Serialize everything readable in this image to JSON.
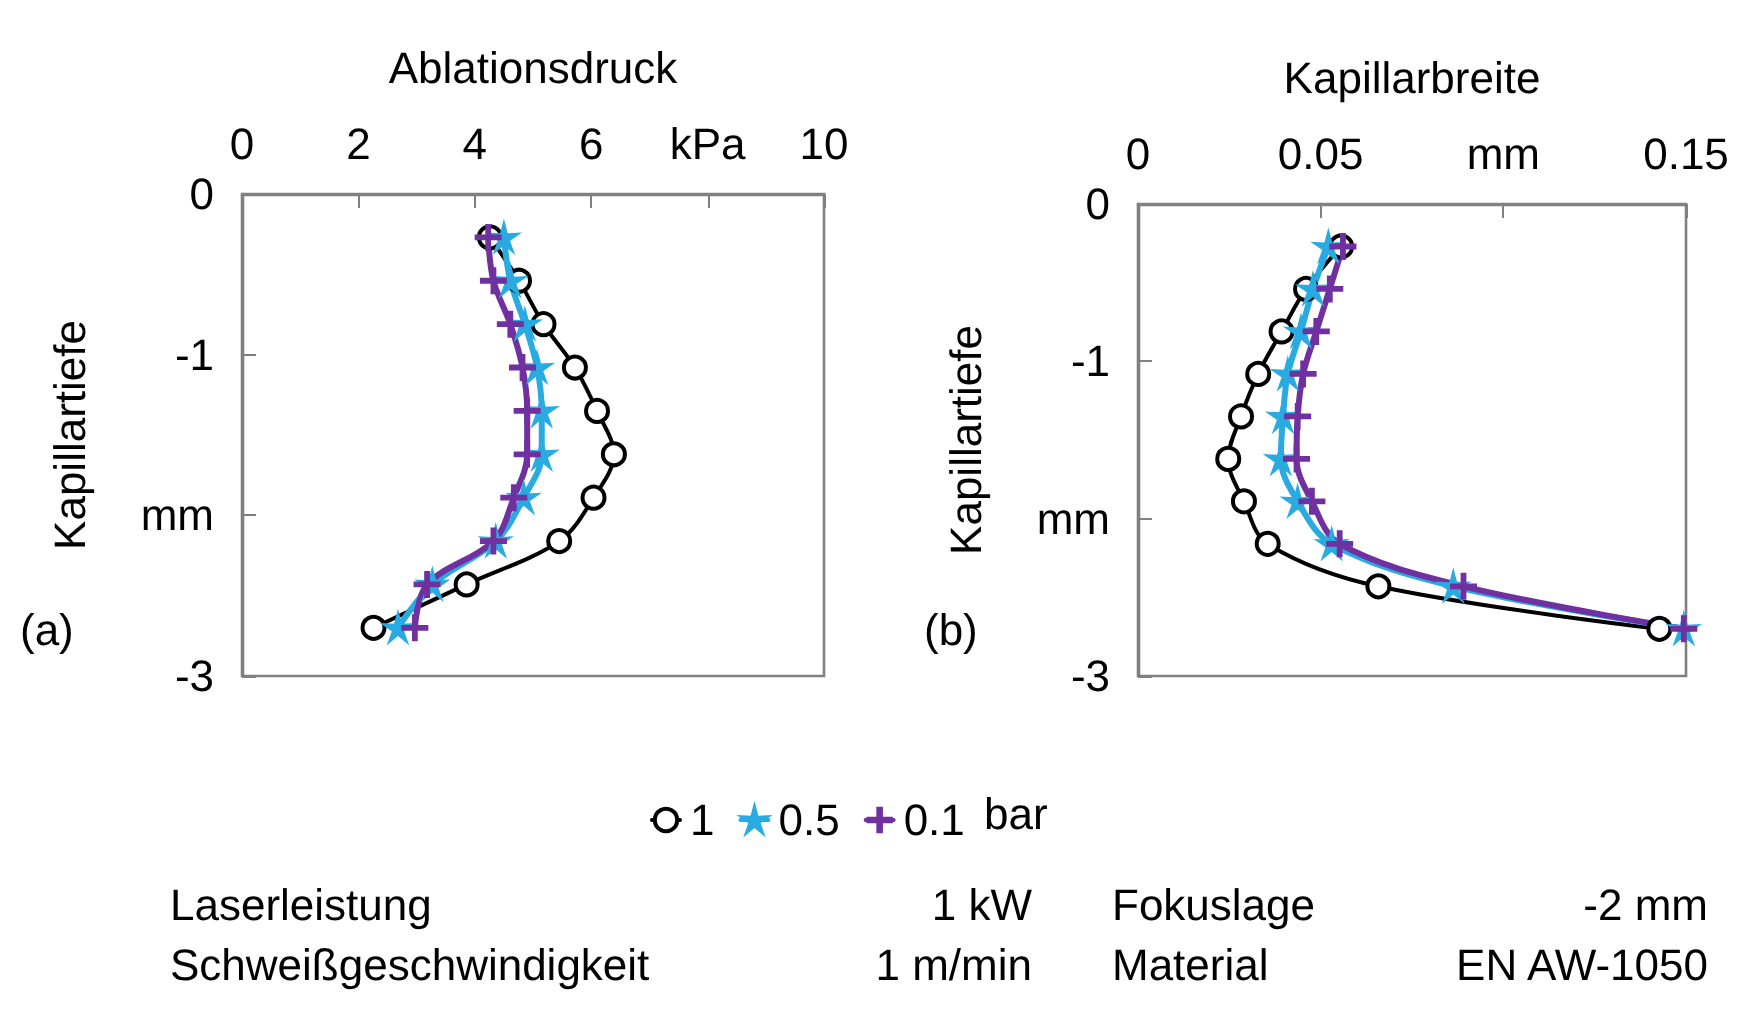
{
  "chart_data": [
    {
      "type": "line",
      "xlabel": "Ablationsdruck",
      "ylabel": "Kapillartiefe",
      "legend": "bottom",
      "legend_title": "bar",
      "grid": false,
      "annotations": [
        "(a)"
      ],
      "xlim": [
        0,
        10
      ],
      "xticks": [
        0,
        2,
        4,
        6,
        {
          "value": 8,
          "label": "kPa"
        },
        10
      ],
      "ylim": [
        -3,
        0
      ],
      "yticks": [
        0,
        -1,
        {
          "value": -2,
          "label": "mm"
        },
        -3
      ],
      "series": [
        {
          "name": "1",
          "color": "#000000",
          "marker": "circle",
          "x": [
            4.26,
            4.76,
            5.18,
            5.72,
            6.1,
            6.39,
            6.04,
            5.45,
            3.86,
            2.26
          ],
          "values": [
            -0.27,
            -0.54,
            -0.81,
            -1.08,
            -1.35,
            -1.62,
            -1.89,
            -2.16,
            -2.43,
            -2.7
          ]
        },
        {
          "name": "0.5",
          "color": "#29abe2",
          "marker": "star",
          "x": [
            4.5,
            4.61,
            4.86,
            5.07,
            5.15,
            5.15,
            4.84,
            4.36,
            3.27,
            2.68
          ],
          "values": [
            -0.27,
            -0.54,
            -0.81,
            -1.08,
            -1.35,
            -1.62,
            -1.89,
            -2.16,
            -2.43,
            -2.7
          ]
        },
        {
          "name": "0.1",
          "color": "#7030a0",
          "marker": "cross",
          "x": [
            4.23,
            4.32,
            4.61,
            4.82,
            4.9,
            4.9,
            4.67,
            4.32,
            3.18,
            2.97
          ],
          "values": [
            -0.27,
            -0.54,
            -0.81,
            -1.08,
            -1.35,
            -1.62,
            -1.89,
            -2.16,
            -2.43,
            -2.7
          ]
        }
      ]
    },
    {
      "type": "line",
      "xlabel": "Kapillarbreite",
      "ylabel": "Kapillartiefe",
      "grid": false,
      "annotations": [
        "(b)"
      ],
      "xlim": [
        0,
        0.15
      ],
      "xticks": [
        0,
        0.05,
        {
          "value": 0.1,
          "label": "mm"
        },
        0.15
      ],
      "ylim": [
        -3,
        0
      ],
      "yticks": [
        0,
        -1,
        {
          "value": -2,
          "label": "mm"
        },
        -3
      ],
      "series": [
        {
          "color": "#000000",
          "marker": "circle",
          "x": [
            0.0556,
            0.046,
            0.0393,
            0.0329,
            0.0282,
            0.0247,
            0.029,
            0.0355,
            0.0658,
            0.1427
          ],
          "values": [
            -0.27,
            -0.54,
            -0.81,
            -1.08,
            -1.35,
            -1.62,
            -1.89,
            -2.16,
            -2.43,
            -2.7
          ]
        },
        {
          "color": "#29abe2",
          "marker": "star",
          "x": [
            0.0521,
            0.0479,
            0.0446,
            0.041,
            0.0397,
            0.0391,
            0.0437,
            0.053,
            0.0863,
            0.1494
          ],
          "values": [
            -0.27,
            -0.54,
            -0.81,
            -1.08,
            -1.35,
            -1.62,
            -1.89,
            -2.16,
            -2.43,
            -2.7
          ]
        },
        {
          "color": "#7030a0",
          "marker": "cross",
          "x": [
            0.0561,
            0.0525,
            0.0488,
            0.0452,
            0.0437,
            0.0434,
            0.0476,
            0.0552,
            0.0891,
            0.1494
          ],
          "values": [
            -0.27,
            -0.54,
            -0.81,
            -1.08,
            -1.35,
            -1.62,
            -1.89,
            -2.16,
            -2.43,
            -2.7
          ]
        }
      ]
    },
    {
      "type": "other",
      "annotations": [
        "Laserleistung",
        "1 kW",
        "Fokuslage",
        "-2 mm",
        "Schweißgeschwindigkeit",
        "1 m/min",
        "Material",
        "EN AW-1050"
      ]
    }
  ]
}
